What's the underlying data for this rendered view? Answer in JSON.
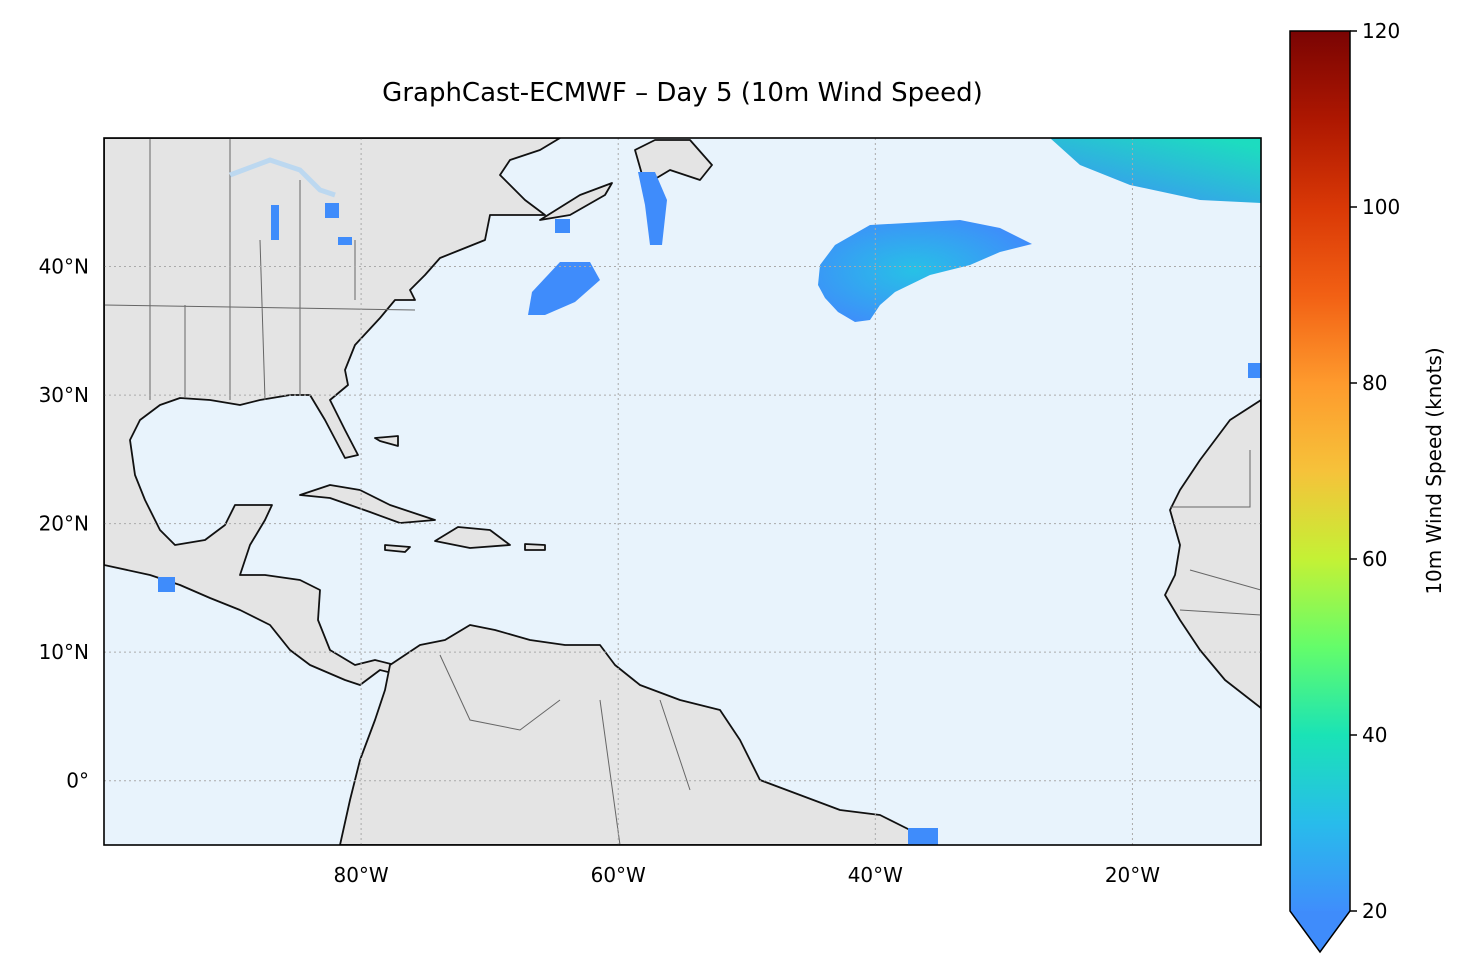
{
  "title": "GraphCast-ECMWF – Day 5 (10m Wind Speed)",
  "map": {
    "extent": {
      "lon": [
        -100,
        -10
      ],
      "lat": [
        -5,
        50
      ]
    },
    "ocean_color": "#e8f3fc",
    "land_color": "#e4e4e4",
    "gridlines": {
      "lon": [
        -80,
        -60,
        -40,
        -20
      ],
      "lat": [
        0,
        10,
        20,
        30,
        40
      ],
      "lon_labels": [
        "80°W",
        "60°W",
        "40°W",
        "20°W"
      ],
      "lat_labels": [
        "0°",
        "10°N",
        "20°N",
        "30°N",
        "40°N"
      ],
      "style": "dotted"
    },
    "wind_regions": [
      {
        "name": "central-atlantic",
        "max_knots": 27
      },
      {
        "name": "northeast-atlantic",
        "max_knots": 34
      },
      {
        "name": "off-nova-scotia",
        "max_knots": 21
      },
      {
        "name": "newfoundland-strip",
        "max_knots": 21
      }
    ]
  },
  "colorbar": {
    "label": "10m Wind Speed (knots)",
    "min": 20,
    "max": 120,
    "ticks": [
      20,
      40,
      60,
      80,
      100,
      120
    ],
    "tick_labels": [
      "20",
      "40",
      "60",
      "80",
      "100",
      "120"
    ],
    "extend": "min",
    "colormap": "turbo",
    "colors": [
      "#3f8efc",
      "#28bceb",
      "#1ae3b6",
      "#64fd6a",
      "#c4f135",
      "#f6c23a",
      "#fe9a2d",
      "#f26014",
      "#d93806",
      "#ad1701",
      "#7a0403"
    ]
  }
}
